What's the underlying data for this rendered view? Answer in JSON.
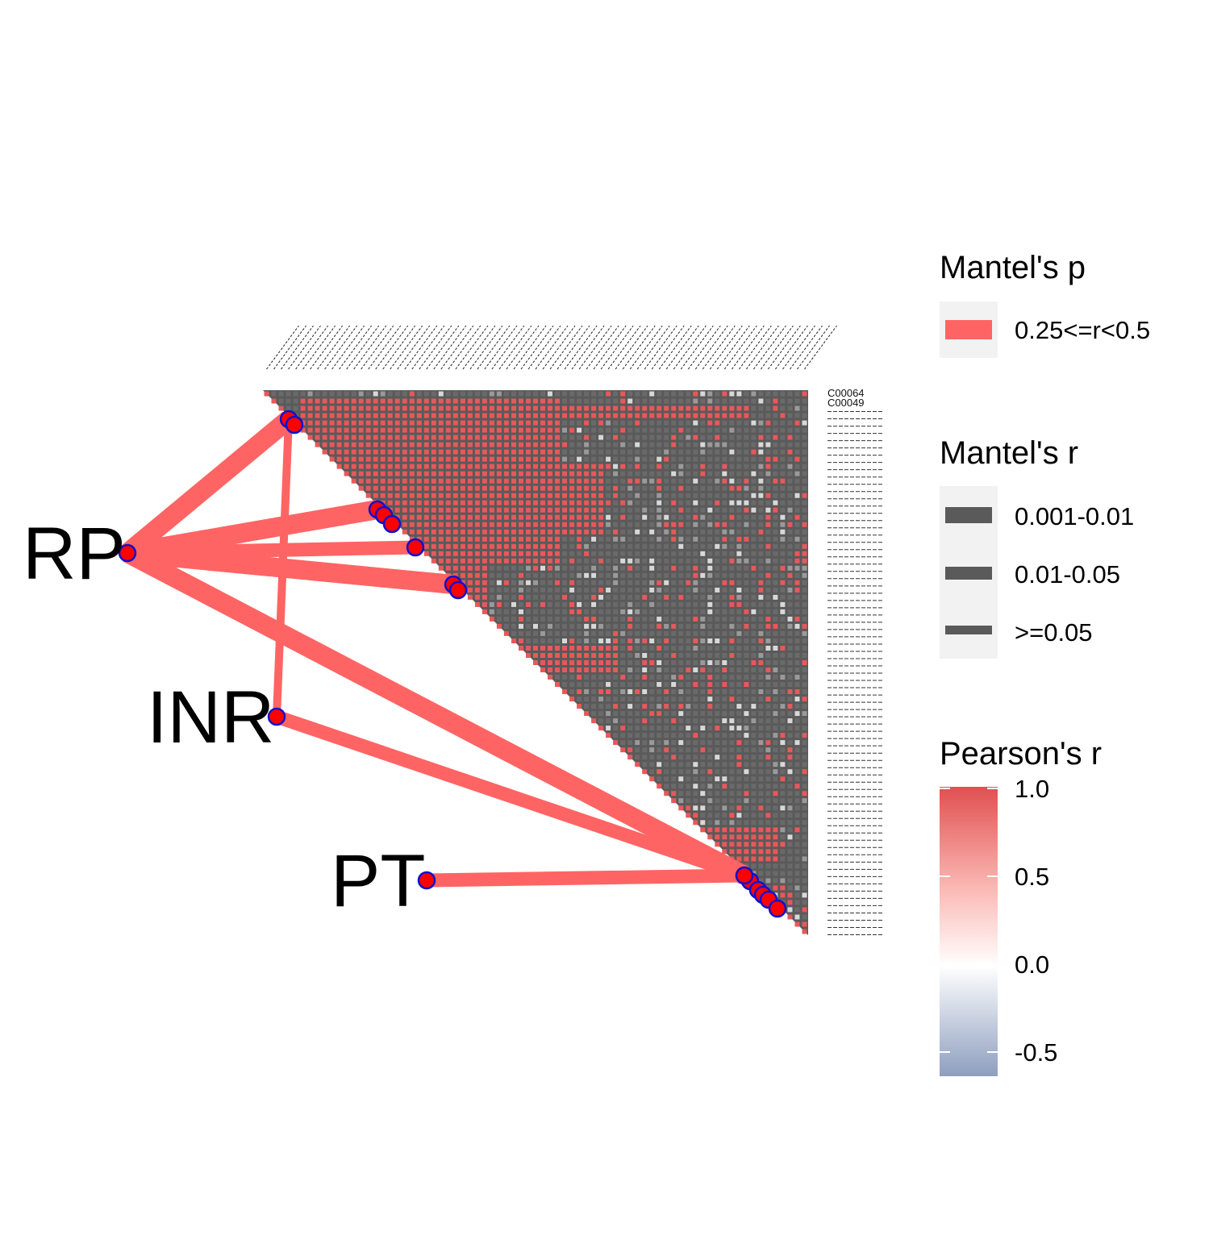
{
  "chart_data": {
    "type": "heatmap",
    "description_type": "mantel-correlogram",
    "heatmap": {
      "lower_triangle": true,
      "fill_scale": "Pearson's r",
      "row_labels_visible": [
        "C00064",
        "C00049"
      ],
      "column_labels_visible": [],
      "dominant_colors": [
        "#5a5a5a",
        "#e8585a"
      ]
    },
    "environment_variables": [
      {
        "label": "RP"
      },
      {
        "label": "INR"
      },
      {
        "label": "PT"
      }
    ],
    "links": [
      {
        "from": "RP",
        "to_group": "rows 3-4",
        "mantel_p_bin": "0.25<=r<0.5",
        "mantel_r_bin": "0.001-0.01"
      },
      {
        "from": "RP",
        "to_group": "rows 14-16",
        "mantel_p_bin": "0.25<=r<0.5",
        "mantel_r_bin": "0.001-0.01"
      },
      {
        "from": "RP",
        "to_group": "row 18",
        "mantel_p_bin": "0.25<=r<0.5",
        "mantel_r_bin": "0.01-0.05"
      },
      {
        "from": "RP",
        "to_group": "rows 22-23",
        "mantel_p_bin": "0.25<=r<0.5",
        "mantel_r_bin": "0.001-0.01"
      },
      {
        "from": "RP",
        "to_group": "rows 68-69",
        "mantel_p_bin": "0.25<=r<0.5",
        "mantel_r_bin": "0.001-0.01"
      },
      {
        "from": "INR",
        "to_group": "rows 3-4",
        "mantel_p_bin": "0.25<=r<0.5",
        "mantel_r_bin": ">=0.05"
      },
      {
        "from": "INR",
        "to_group": "rows 68-69",
        "mantel_p_bin": "0.25<=r<0.5",
        "mantel_r_bin": "0.01-0.05"
      },
      {
        "from": "PT",
        "to_group": "rows 68-72",
        "mantel_p_bin": "0.25<=r<0.5",
        "mantel_r_bin": "0.01-0.05"
      }
    ],
    "legends": {
      "mantel_p": {
        "title": "Mantel's p",
        "items": [
          {
            "label": "0.25<=r<0.5",
            "color": "#ff6464"
          }
        ]
      },
      "mantel_r": {
        "title": "Mantel's r",
        "items": [
          {
            "label": "0.001-0.01",
            "width": "thick"
          },
          {
            "label": "0.01-0.05",
            "width": "medium"
          },
          {
            "label": ">=0.05",
            "width": "thin"
          }
        ]
      },
      "pearson_r": {
        "title": "Pearson's r",
        "range": [
          -0.65,
          1.0
        ],
        "ticks": [
          "1.0",
          "0.5",
          "0.0",
          "-0.5"
        ],
        "colors": {
          "high": "#e05050",
          "mid": "#ffffff",
          "low": "#8e9ebf"
        }
      }
    }
  }
}
